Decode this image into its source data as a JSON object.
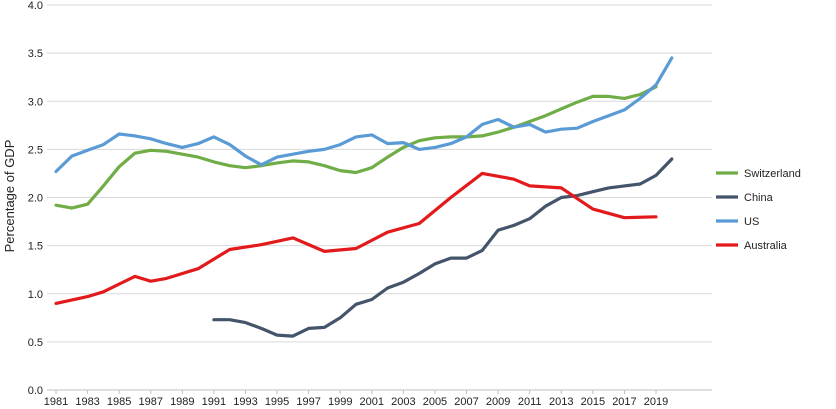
{
  "chart_data": {
    "type": "line",
    "title": "",
    "xlabel": "",
    "ylabel": "Percentage of GDP",
    "xlim": [
      1981,
      2020
    ],
    "ylim": [
      0,
      4.0
    ],
    "yticks": [
      "0.0",
      "0.5",
      "1.0",
      "1.5",
      "2.0",
      "2.5",
      "3.0",
      "3.5",
      "4.0"
    ],
    "xticks": [
      "1981",
      "1983",
      "1985",
      "1987",
      "1989",
      "1991",
      "1993",
      "1995",
      "1997",
      "1999",
      "2001",
      "2003",
      "2005",
      "2007",
      "2009",
      "2011",
      "2013",
      "2015",
      "2017",
      "2019"
    ],
    "grid": "horizontal",
    "legend_position": "right",
    "series": [
      {
        "name": "Switzerland",
        "color": "#70ad47",
        "points": [
          [
            1981,
            1.92
          ],
          [
            1982,
            1.89
          ],
          [
            1983,
            1.93
          ],
          [
            1984,
            2.12
          ],
          [
            1985,
            2.32
          ],
          [
            1986,
            2.46
          ],
          [
            1987,
            2.49
          ],
          [
            1988,
            2.48
          ],
          [
            1989,
            2.45
          ],
          [
            1990,
            2.42
          ],
          [
            1991,
            2.37
          ],
          [
            1992,
            2.33
          ],
          [
            1993,
            2.31
          ],
          [
            1994,
            2.33
          ],
          [
            1995,
            2.36
          ],
          [
            1996,
            2.38
          ],
          [
            1997,
            2.37
          ],
          [
            1998,
            2.33
          ],
          [
            1999,
            2.28
          ],
          [
            2000,
            2.26
          ],
          [
            2001,
            2.31
          ],
          [
            2002,
            2.42
          ],
          [
            2003,
            2.52
          ],
          [
            2004,
            2.59
          ],
          [
            2005,
            2.62
          ],
          [
            2006,
            2.63
          ],
          [
            2007,
            2.63
          ],
          [
            2008,
            2.64
          ],
          [
            2009,
            2.68
          ],
          [
            2010,
            2.73
          ],
          [
            2011,
            2.79
          ],
          [
            2012,
            2.85
          ],
          [
            2013,
            2.92
          ],
          [
            2014,
            2.99
          ],
          [
            2015,
            3.05
          ],
          [
            2016,
            3.05
          ],
          [
            2017,
            3.03
          ],
          [
            2018,
            3.07
          ],
          [
            2019,
            3.15
          ]
        ]
      },
      {
        "name": "China",
        "color": "#44546a",
        "points": [
          [
            1991,
            0.73
          ],
          [
            1992,
            0.73
          ],
          [
            1993,
            0.7
          ],
          [
            1994,
            0.64
          ],
          [
            1995,
            0.57
          ],
          [
            1996,
            0.56
          ],
          [
            1997,
            0.64
          ],
          [
            1998,
            0.65
          ],
          [
            1999,
            0.75
          ],
          [
            2000,
            0.89
          ],
          [
            2001,
            0.94
          ],
          [
            2002,
            1.06
          ],
          [
            2003,
            1.12
          ],
          [
            2004,
            1.21
          ],
          [
            2005,
            1.31
          ],
          [
            2006,
            1.37
          ],
          [
            2007,
            1.37
          ],
          [
            2008,
            1.45
          ],
          [
            2009,
            1.66
          ],
          [
            2010,
            1.71
          ],
          [
            2011,
            1.78
          ],
          [
            2012,
            1.91
          ],
          [
            2013,
            2.0
          ],
          [
            2014,
            2.02
          ],
          [
            2015,
            2.06
          ],
          [
            2016,
            2.1
          ],
          [
            2017,
            2.12
          ],
          [
            2018,
            2.14
          ],
          [
            2019,
            2.23
          ],
          [
            2020,
            2.4
          ]
        ]
      },
      {
        "name": "US",
        "color": "#5b9bd5",
        "points": [
          [
            1981,
            2.27
          ],
          [
            1982,
            2.43
          ],
          [
            1983,
            2.49
          ],
          [
            1984,
            2.55
          ],
          [
            1985,
            2.66
          ],
          [
            1986,
            2.64
          ],
          [
            1987,
            2.61
          ],
          [
            1988,
            2.56
          ],
          [
            1989,
            2.52
          ],
          [
            1990,
            2.56
          ],
          [
            1991,
            2.63
          ],
          [
            1992,
            2.55
          ],
          [
            1993,
            2.43
          ],
          [
            1994,
            2.34
          ],
          [
            1995,
            2.42
          ],
          [
            1996,
            2.45
          ],
          [
            1997,
            2.48
          ],
          [
            1998,
            2.5
          ],
          [
            1999,
            2.55
          ],
          [
            2000,
            2.63
          ],
          [
            2001,
            2.65
          ],
          [
            2002,
            2.56
          ],
          [
            2003,
            2.57
          ],
          [
            2004,
            2.5
          ],
          [
            2005,
            2.52
          ],
          [
            2006,
            2.56
          ],
          [
            2007,
            2.63
          ],
          [
            2008,
            2.76
          ],
          [
            2009,
            2.81
          ],
          [
            2010,
            2.73
          ],
          [
            2011,
            2.76
          ],
          [
            2012,
            2.68
          ],
          [
            2013,
            2.71
          ],
          [
            2014,
            2.72
          ],
          [
            2015,
            2.79
          ],
          [
            2016,
            2.85
          ],
          [
            2017,
            2.91
          ],
          [
            2018,
            3.03
          ],
          [
            2019,
            3.17
          ],
          [
            2020,
            3.45
          ]
        ]
      },
      {
        "name": "Australia",
        "color": "#e31a1c",
        "points": [
          [
            1981,
            0.9
          ],
          [
            1983,
            0.97
          ],
          [
            1984,
            1.02
          ],
          [
            1986,
            1.18
          ],
          [
            1987,
            1.13
          ],
          [
            1988,
            1.16
          ],
          [
            1990,
            1.26
          ],
          [
            1992,
            1.46
          ],
          [
            1994,
            1.51
          ],
          [
            1996,
            1.58
          ],
          [
            1998,
            1.44
          ],
          [
            2000,
            1.47
          ],
          [
            2002,
            1.64
          ],
          [
            2004,
            1.73
          ],
          [
            2006,
            2.0
          ],
          [
            2008,
            2.25
          ],
          [
            2010,
            2.19
          ],
          [
            2011,
            2.12
          ],
          [
            2013,
            2.1
          ],
          [
            2015,
            1.88
          ],
          [
            2017,
            1.79
          ],
          [
            2019,
            1.8
          ]
        ]
      }
    ]
  }
}
